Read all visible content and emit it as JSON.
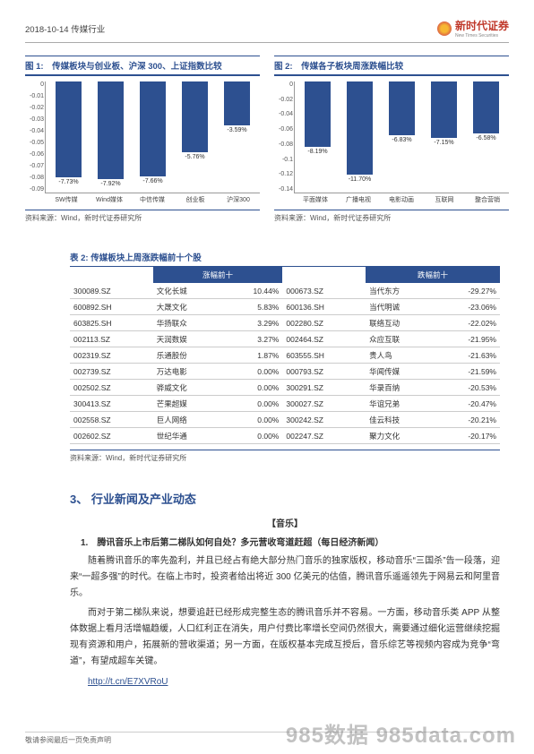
{
  "header": {
    "left": "2018-10-14  传媒行业",
    "brand_cn": "新时代证券",
    "brand_en": "New Times Securities"
  },
  "chart1": {
    "title": "图 1:　传媒板块与创业板、沪深 300、上证指数比较",
    "type": "bar",
    "ylim": [
      -0.09,
      0
    ],
    "yticks": [
      "0",
      "-0.01",
      "-0.02",
      "-0.03",
      "-0.04",
      "-0.05",
      "-0.06",
      "-0.07",
      "-0.08",
      "-0.09"
    ],
    "categories": [
      "SW传媒",
      "Wind媒体",
      "中信传媒",
      "创业板",
      "沪深300"
    ],
    "values": [
      -7.73,
      -7.92,
      -7.66,
      -5.76,
      -3.59
    ],
    "value_labels": [
      "-7.73%",
      "-7.92%",
      "-7.66%",
      "-5.76%",
      "-3.59%"
    ],
    "bar_color": "#2d5090",
    "background_color": "#ffffff",
    "axis_color": "#999999"
  },
  "chart2": {
    "title": "图 2:　传媒各子板块周涨跌幅比较",
    "type": "bar",
    "ylim": [
      -0.14,
      0
    ],
    "yticks": [
      "0",
      "-0.02",
      "-0.04",
      "-0.06",
      "-0.08",
      "-0.1",
      "-0.12",
      "-0.14"
    ],
    "categories": [
      "平面媒体",
      "广播电视",
      "电影动画",
      "互联网",
      "整合营销"
    ],
    "values": [
      -8.19,
      -11.7,
      -6.83,
      -7.15,
      -6.58
    ],
    "value_labels": [
      "-8.19%",
      "-11.70%",
      "-6.83%",
      "-7.15%",
      "-6.58%"
    ],
    "bar_color": "#2d5090",
    "background_color": "#ffffff",
    "axis_color": "#999999"
  },
  "charts_source": "资料来源：Wind，新时代证券研究所",
  "table": {
    "title": "表 2: 传媒板块上周涨跌幅前十个股",
    "header_left": "涨幅前十",
    "header_right": "跌幅前十",
    "rows": [
      [
        "300089.SZ",
        "文化长城",
        "10.44%",
        "000673.SZ",
        "当代东方",
        "-29.27%"
      ],
      [
        "600892.SH",
        "大晟文化",
        "5.83%",
        "600136.SH",
        "当代明诚",
        "-23.06%"
      ],
      [
        "603825.SH",
        "华扬联众",
        "3.29%",
        "002280.SZ",
        "联络互动",
        "-22.02%"
      ],
      [
        "002113.SZ",
        "天润数娱",
        "3.27%",
        "002464.SZ",
        "众应互联",
        "-21.95%"
      ],
      [
        "002319.SZ",
        "乐通股份",
        "1.87%",
        "603555.SH",
        "贵人鸟",
        "-21.63%"
      ],
      [
        "002739.SZ",
        "万达电影",
        "0.00%",
        "000793.SZ",
        "华闻传媒",
        "-21.59%"
      ],
      [
        "002502.SZ",
        "骅威文化",
        "0.00%",
        "300291.SZ",
        "华录百纳",
        "-20.53%"
      ],
      [
        "300413.SZ",
        "芒果超媒",
        "0.00%",
        "300027.SZ",
        "华谊兄弟",
        "-20.47%"
      ],
      [
        "002558.SZ",
        "巨人网络",
        "0.00%",
        "300242.SZ",
        "佳云科技",
        "-20.21%"
      ],
      [
        "002602.SZ",
        "世纪华通",
        "0.00%",
        "002247.SZ",
        "聚力文化",
        "-20.17%"
      ]
    ],
    "source": "资料来源：Wind，新时代证券研究所"
  },
  "section3": {
    "heading": "3、 行业新闻及产业动态",
    "sub": "【音乐】",
    "item": "1.　腾讯音乐上市后第二梯队如何自处？多元营收弯道赶超（每日经济新闻）",
    "p1": "随着腾讯音乐的率先盈利，并且已经占有绝大部分热门音乐的独家版权，移动音乐“三国杀”告一段落，迎来“一超多强”的时代。在临上市时，投资者给出将近 300 亿美元的估值，腾讯音乐遥遥领先于网易云和阿里音乐。",
    "p2": "而对于第二梯队来说，想要追赶已经形成完整生态的腾讯音乐并不容易。一方面，移动音乐类 APP 从整体数据上看月活增幅趋缓，人口红利正在消失，用户付费比率增长空间仍然很大，需要通过细化运营继续挖掘现有资源和用户，拓展新的营收渠道；另一方面，在版权基本完成互授后，音乐综艺等视频内容成为竞争“弯道”，有望成超车关键。",
    "link": "http://t.cn/E7XVRoU"
  },
  "footer": {
    "left": "敬请参阅最后一页免责声明"
  },
  "watermark": "985数据 985data.com"
}
